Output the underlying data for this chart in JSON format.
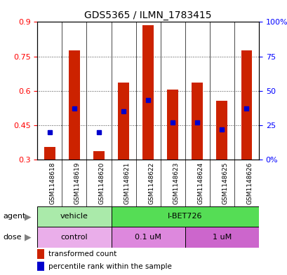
{
  "title": "GDS5365 / ILMN_1783415",
  "samples": [
    "GSM1148618",
    "GSM1148619",
    "GSM1148620",
    "GSM1148621",
    "GSM1148622",
    "GSM1148623",
    "GSM1148624",
    "GSM1148625",
    "GSM1148626"
  ],
  "red_values": [
    0.355,
    0.775,
    0.335,
    0.635,
    0.885,
    0.605,
    0.635,
    0.555,
    0.775
  ],
  "blue_values_pct": [
    20,
    37,
    20,
    35,
    43,
    27,
    27,
    22,
    37
  ],
  "ylim_left": [
    0.3,
    0.9
  ],
  "ylim_right": [
    0,
    100
  ],
  "yticks_left": [
    0.3,
    0.45,
    0.6,
    0.75,
    0.9
  ],
  "yticks_right": [
    0,
    25,
    50,
    75,
    100
  ],
  "ytick_labels_left": [
    "0.3",
    "0.45",
    "0.6",
    "0.75",
    "0.9"
  ],
  "ytick_labels_right": [
    "0%",
    "25",
    "50",
    "75",
    "100%"
  ],
  "bar_color": "#cc2200",
  "dot_color": "#0000cc",
  "bar_width": 0.45,
  "agent_labels": [
    {
      "text": "vehicle",
      "start": 0,
      "end": 3,
      "color": "#aaeaaa"
    },
    {
      "text": "I-BET726",
      "start": 3,
      "end": 9,
      "color": "#55dd55"
    }
  ],
  "dose_labels": [
    {
      "text": "control",
      "start": 0,
      "end": 3,
      "color": "#eaaeea"
    },
    {
      "text": "0.1 uM",
      "start": 3,
      "end": 6,
      "color": "#dd88dd"
    },
    {
      "text": "1 uM",
      "start": 6,
      "end": 9,
      "color": "#cc66cc"
    }
  ],
  "legend_red": "transformed count",
  "legend_blue": "percentile rank within the sample",
  "row_label_agent": "agent",
  "row_label_dose": "dose",
  "xtick_bg": "#d0d0d0",
  "plot_bg": "#ffffff"
}
